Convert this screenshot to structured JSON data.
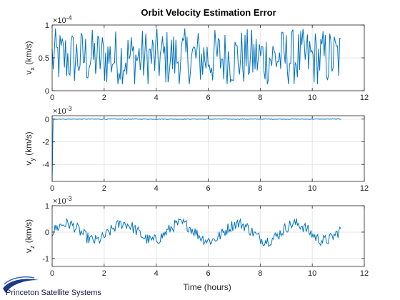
{
  "chart_data": {
    "type": "line",
    "title": "Orbit Velocity Estimation Error",
    "xlabel": "Time (hours)",
    "xlim": [
      0,
      12
    ],
    "x_ticks": [
      "0",
      "2",
      "4",
      "6",
      "8",
      "10",
      "12"
    ],
    "grid": true,
    "line_color": "#0072BD",
    "brand": "Princeton Satellite Systems",
    "subplots": [
      {
        "ylabel_main": "v",
        "ylabel_sub": "x",
        "ylabel_unit": " (km/s)",
        "exponent_base": "×10",
        "exponent": "-4",
        "ylim": [
          0,
          1
        ],
        "y_ticks": [
          {
            "value": 0,
            "label": "0"
          },
          {
            "value": 0.5,
            "label": "0.5"
          },
          {
            "value": 1,
            "label": "1"
          }
        ],
        "x_end": 11.1,
        "n_points": 260,
        "signal": {
          "kind": "noise",
          "base": 0.5,
          "amp": 0.45,
          "min": 0.1,
          "max": 1.0
        }
      },
      {
        "ylabel_main": "v",
        "ylabel_sub": "y",
        "ylabel_unit": " (km/s)",
        "exponent_base": "×10",
        "exponent": "-3",
        "ylim": [
          -5.5,
          0.3
        ],
        "y_ticks": [
          {
            "value": 0,
            "label": "0"
          },
          {
            "value": -2,
            "label": "-2"
          },
          {
            "value": -4,
            "label": "-4"
          }
        ],
        "x_end": 11.1,
        "n_points": 300,
        "signal": {
          "kind": "spike",
          "start": -5.3,
          "settle": 0.0,
          "noise": 0.03
        }
      },
      {
        "ylabel_main": "v",
        "ylabel_sub": "z",
        "ylabel_unit": " (km/s)",
        "exponent_base": "×10",
        "exponent": "-3",
        "ylim": [
          -1.3,
          1.0
        ],
        "y_ticks": [
          {
            "value": 1,
            "label": "1"
          },
          {
            "value": 0,
            "label": "0"
          },
          {
            "value": -1,
            "label": "-1"
          }
        ],
        "x_end": 11.1,
        "n_points": 300,
        "signal": {
          "kind": "periodic",
          "amp": 0.32,
          "period_hours": 2.2,
          "noise": 0.22
        }
      }
    ]
  }
}
